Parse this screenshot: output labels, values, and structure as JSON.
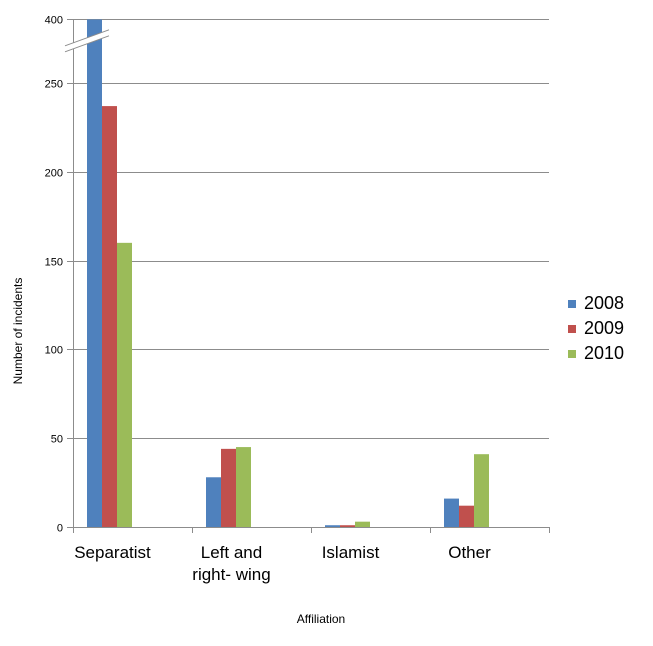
{
  "chart_data": {
    "type": "bar",
    "categories": [
      "Separatist",
      "Left and right- wing",
      "Islamist",
      "Other"
    ],
    "category_lines": [
      [
        "Separatist"
      ],
      [
        "Left and",
        "right- wing"
      ],
      [
        "Islamist"
      ],
      [
        "Other"
      ]
    ],
    "series": [
      {
        "name": "2008",
        "color": "#4F81BD",
        "values": [
          397,
          28,
          1,
          16
        ]
      },
      {
        "name": "2009",
        "color": "#C0504D",
        "values": [
          237,
          44,
          1,
          12
        ]
      },
      {
        "name": "2010",
        "color": "#9BBB59",
        "values": [
          160,
          45,
          3,
          41
        ]
      }
    ],
    "y_ticks": [
      0,
      50,
      100,
      150,
      200,
      250,
      400
    ],
    "y_tick_labels": [
      "0",
      "50",
      "100",
      "150",
      "200",
      "250",
      "400"
    ],
    "ylim": [
      0,
      400
    ],
    "y_axis_break": {
      "from": 275,
      "to": 390
    },
    "xlabel": "Affiliation",
    "ylabel": "Number of incidents",
    "grid": true,
    "legend": "right"
  }
}
